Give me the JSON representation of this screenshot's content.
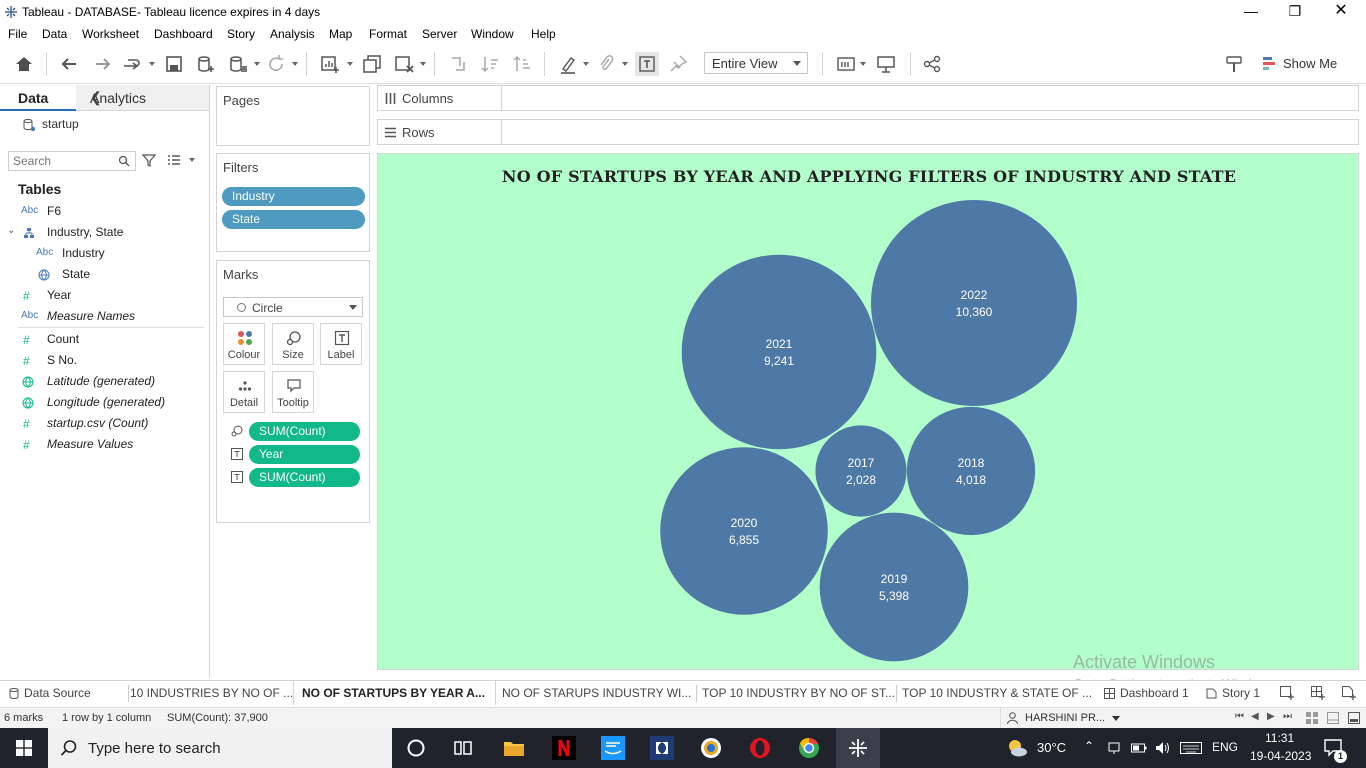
{
  "window": {
    "title": "Tableau - DATABASE- Tableau licence expires in 4 days"
  },
  "menu": [
    "File",
    "Data",
    "Worksheet",
    "Dashboard",
    "Story",
    "Analysis",
    "Map",
    "Format",
    "Server",
    "Window",
    "Help"
  ],
  "toolbar": {
    "view_mode": "Entire View",
    "show_me": "Show Me"
  },
  "data_pane": {
    "tab_data": "Data",
    "tab_analytics": "Analytics",
    "datasource": "startup",
    "search_placeholder": "Search",
    "tables_label": "Tables",
    "fields": [
      {
        "type": "Abc",
        "name": "F6"
      },
      {
        "type": "hierarchy",
        "name": "Industry, State"
      },
      {
        "type": "Abc",
        "name": "Industry"
      },
      {
        "type": "geo",
        "name": "State"
      },
      {
        "type": "#",
        "name": "Year"
      },
      {
        "type": "Abc",
        "name": "Measure Names"
      },
      {
        "type": "#",
        "name": "Count"
      },
      {
        "type": "#",
        "name": "S No."
      },
      {
        "type": "geo",
        "name": "Latitude (generated)"
      },
      {
        "type": "geo",
        "name": "Longitude (generated)"
      },
      {
        "type": "#",
        "name": "startup.csv (Count)"
      },
      {
        "type": "#",
        "name": "Measure Values"
      }
    ]
  },
  "pages": {
    "title": "Pages"
  },
  "filters": {
    "title": "Filters",
    "items": [
      "Industry",
      "State"
    ]
  },
  "marks": {
    "title": "Marks",
    "type": "Circle",
    "buttons": [
      "Colour",
      "Size",
      "Label",
      "Detail",
      "Tooltip"
    ],
    "fields": [
      "SUM(Count)",
      "Year",
      "SUM(Count)"
    ]
  },
  "shelves": {
    "columns": "Columns",
    "rows": "Rows"
  },
  "chart_data": {
    "type": "bubble",
    "title": "NO OF STARTUPS BY YEAR AND APPLYING FILTERS OF INDUSTRY AND STATE",
    "categories": [
      "2017",
      "2018",
      "2019",
      "2020",
      "2021",
      "2022"
    ],
    "values": [
      2028,
      4018,
      5398,
      6855,
      9241,
      10360
    ],
    "labels": [
      "2,028",
      "4,018",
      "5,398",
      "6,855",
      "9,241",
      "10,360"
    ],
    "color": "#4e79a7",
    "background": "#b3ffcc"
  },
  "watermark": {
    "line1": "Activate Windows",
    "line2": "Go to Settings to activate Windows."
  },
  "sheet_tabs": {
    "data_source": "Data Source",
    "sheets": [
      "10 INDUSTRIES BY NO OF ...",
      "NO OF STARTUPS BY YEAR A...",
      "NO OF STARUPS INDUSTRY WI...",
      "TOP 10 INDUSTRY BY NO OF ST...",
      "TOP 10 INDUSTRY & STATE OF ..."
    ],
    "dashboard": "Dashboard 1",
    "story": "Story 1"
  },
  "status": {
    "marks": "6 marks",
    "dims": "1 row by 1 column",
    "sum": "SUM(Count): 37,900",
    "user": "HARSHINI PR..."
  },
  "taskbar": {
    "search_placeholder": "Type here to search",
    "temperature": "30°C",
    "lang": "ENG",
    "time": "11:31",
    "date": "19-04-2023",
    "notifications": "1"
  }
}
